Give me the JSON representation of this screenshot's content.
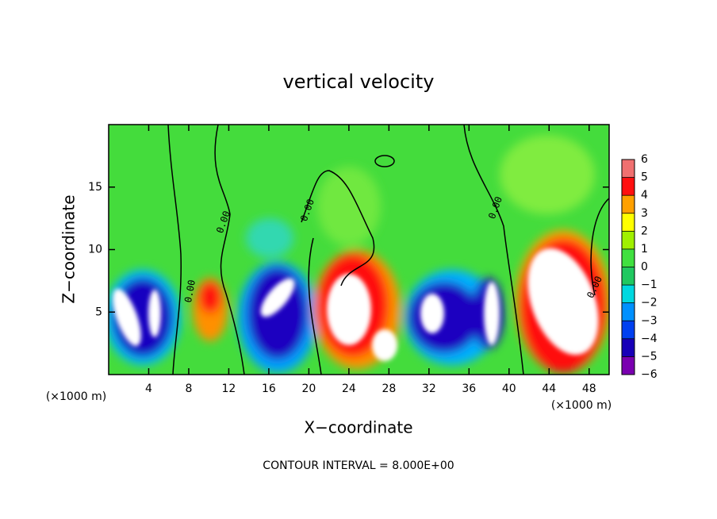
{
  "chart_data": {
    "type": "contour",
    "title": "vertical velocity",
    "xlabel": "X−coordinate",
    "ylabel": "Z−coordinate",
    "x_unit": "(×1000 m)",
    "annotation": "CONTOUR INTERVAL = 8.000E+00",
    "contour_label": "0.00",
    "xlim": [
      0,
      50
    ],
    "ylim": [
      0,
      20
    ],
    "xticks": [
      4,
      8,
      12,
      16,
      20,
      24,
      28,
      32,
      36,
      40,
      44,
      48
    ],
    "yticks": [
      5,
      10,
      15
    ],
    "colorbar_lim": [
      -6,
      6
    ],
    "colorbar_ticks": [
      {
        "value": -6,
        "label": "−6"
      },
      {
        "value": -5,
        "label": "−5"
      },
      {
        "value": -4,
        "label": "−4"
      },
      {
        "value": -3,
        "label": "−3"
      },
      {
        "value": -2,
        "label": "−2"
      },
      {
        "value": -1,
        "label": "−1"
      },
      0,
      1,
      2,
      3,
      4,
      5,
      6
    ],
    "colorbar_colors": [
      "#7a00b0",
      "#1800b8",
      "#0040f0",
      "#0090ff",
      "#00d8e0",
      "#20c860",
      "#40e040",
      "#a0f000",
      "#ffff00",
      "#ffa000",
      "#ff1010",
      "#f07070"
    ]
  }
}
